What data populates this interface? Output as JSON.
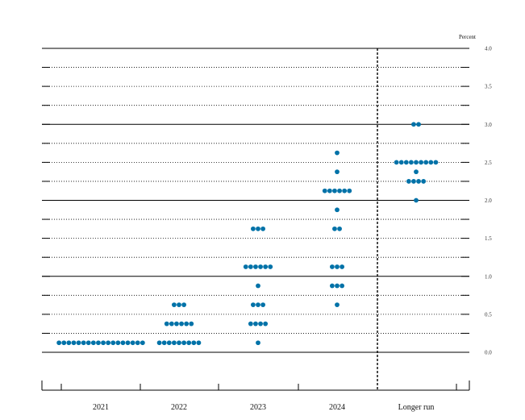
{
  "chart_data": {
    "type": "scatter",
    "title": "",
    "xlabel": "",
    "ylabel": "Percent",
    "ylim": [
      -0.25,
      4.0
    ],
    "yticks": [
      0.0,
      0.5,
      1.0,
      1.5,
      2.0,
      2.5,
      3.0,
      3.5,
      4.0
    ],
    "ytick_labels": [
      "0.0",
      "0.5",
      "1.0",
      "1.5",
      "2.0",
      "2.5",
      "3.0",
      "3.5",
      "4.0"
    ],
    "grid": true,
    "categories": [
      "2021",
      "2022",
      "2023",
      "2024",
      "Longer run"
    ],
    "dot_color": "#0072a8",
    "points": [
      {
        "category": "2021",
        "values": [
          {
            "y": 0.125,
            "count": 18
          }
        ]
      },
      {
        "category": "2022",
        "values": [
          {
            "y": 0.125,
            "count": 9
          },
          {
            "y": 0.375,
            "count": 6
          },
          {
            "y": 0.625,
            "count": 3
          }
        ]
      },
      {
        "category": "2023",
        "values": [
          {
            "y": 0.125,
            "count": 1
          },
          {
            "y": 0.375,
            "count": 4
          },
          {
            "y": 0.625,
            "count": 3
          },
          {
            "y": 0.875,
            "count": 1
          },
          {
            "y": 1.125,
            "count": 6
          },
          {
            "y": 1.625,
            "count": 3
          }
        ]
      },
      {
        "category": "2024",
        "values": [
          {
            "y": 0.625,
            "count": 1
          },
          {
            "y": 0.875,
            "count": 3
          },
          {
            "y": 1.125,
            "count": 3
          },
          {
            "y": 1.625,
            "count": 2
          },
          {
            "y": 1.875,
            "count": 1
          },
          {
            "y": 2.125,
            "count": 6
          },
          {
            "y": 2.375,
            "count": 1
          },
          {
            "y": 2.625,
            "count": 1
          }
        ]
      },
      {
        "category": "Longer run",
        "values": [
          {
            "y": 2.0,
            "count": 1
          },
          {
            "y": 2.25,
            "count": 4
          },
          {
            "y": 2.375,
            "count": 1
          },
          {
            "y": 2.5,
            "count": 9
          },
          {
            "y": 3.0,
            "count": 2
          }
        ]
      }
    ]
  }
}
